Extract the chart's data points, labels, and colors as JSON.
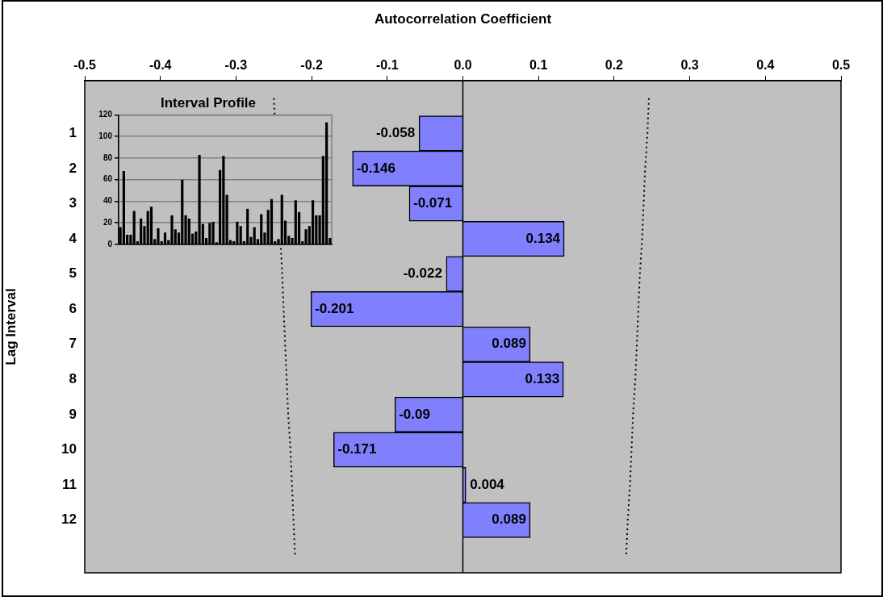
{
  "chart_data": [
    {
      "type": "bar",
      "orientation": "horizontal",
      "xlabel": "Autocorrelation Coefficient",
      "ylabel": "Lag Interval",
      "categories": [
        null,
        "1",
        "2",
        "3",
        "4",
        "5",
        "6",
        "7",
        "8",
        "9",
        "10",
        "11",
        "12",
        null
      ],
      "series": [
        {
          "color": "#8080ff",
          "values": [
            null,
            -0.058,
            -0.146,
            -0.071,
            0.134,
            -0.022,
            -0.201,
            0.089,
            0.133,
            -0.09,
            -0.171,
            0.004,
            0.089,
            null
          ],
          "value_labels": [
            null,
            "-0.058",
            "-0.146",
            "-0.071",
            "0.134",
            "-0.022",
            "-0.201",
            "0.089",
            "0.133",
            "-0.09",
            "-0.171",
            "0.004",
            "0.089",
            null
          ]
        },
        {
          "type": "line",
          "color": "#000000",
          "line_style": "dotted",
          "values": [
            0.246,
            0.244,
            0.241,
            0.239,
            0.237,
            0.234,
            0.232,
            0.23,
            0.228,
            0.225,
            0.223,
            0.221,
            0.218,
            0.216
          ]
        },
        {
          "type": "line",
          "color": "#000000",
          "line_style": "dotted",
          "values": [
            -0.25,
            null,
            null,
            null,
            null,
            -0.239,
            -0.237,
            -0.235,
            -0.233,
            -0.231,
            -0.228,
            -0.226,
            -0.224,
            -0.222
          ]
        }
      ],
      "xlim": [
        -0.5,
        0.5
      ],
      "xticks": [
        -0.5,
        -0.4,
        -0.3,
        -0.2,
        -0.1,
        {
          "value": 0,
          "label": "0.0"
        },
        0.1,
        0.2,
        0.3,
        0.4,
        0.5
      ],
      "marker": "none",
      "ref_lines": [
        {
          "axis": "x",
          "value": 0
        }
      ]
    },
    {
      "type": "bar",
      "title": "Interval Profile",
      "categories": [
        null,
        null,
        null,
        null,
        null,
        null,
        null,
        null,
        null,
        null,
        null,
        null,
        null,
        null,
        null,
        null,
        null,
        null,
        null,
        null,
        null,
        null,
        null,
        null,
        null,
        null,
        null,
        null,
        null,
        null,
        null,
        null,
        null,
        null,
        null,
        null,
        null,
        null,
        null,
        null,
        null,
        null,
        null,
        null,
        null,
        null,
        null,
        null,
        null,
        null,
        null,
        null,
        null,
        null,
        null,
        null,
        null,
        null,
        null,
        null,
        null,
        null
      ],
      "values": [
        16,
        68,
        9,
        9,
        31,
        3,
        24,
        17,
        31,
        35,
        5,
        15,
        3,
        11,
        4,
        27,
        14,
        11,
        60,
        27,
        24,
        10,
        12,
        83,
        19,
        6,
        20,
        21,
        2,
        69,
        82,
        46,
        4,
        3,
        21,
        17,
        3,
        33,
        7,
        16,
        5,
        28,
        11,
        32,
        42,
        3,
        5,
        46,
        22,
        8,
        6,
        41,
        30,
        3,
        14,
        17,
        41,
        27,
        27,
        82,
        113,
        6
      ],
      "color": "#000000",
      "ylim": [
        0,
        120
      ],
      "yticks": [
        0,
        20,
        40,
        60,
        80,
        100,
        120
      ],
      "grid": "y",
      "tick_labels": "y"
    }
  ]
}
